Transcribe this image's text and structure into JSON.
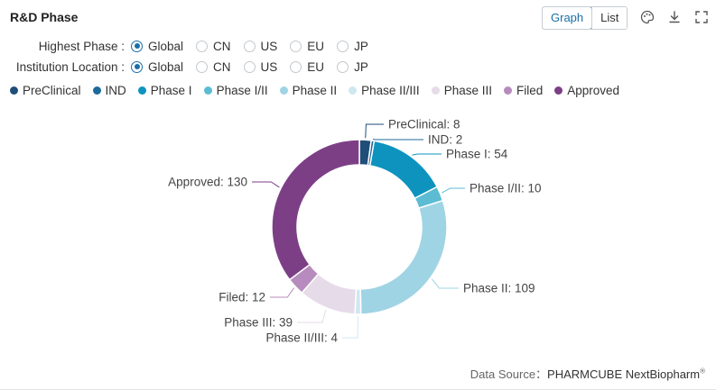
{
  "panel": {
    "title": "R&D Phase"
  },
  "view_toggle": {
    "graph_label": "Graph",
    "list_label": "List"
  },
  "toolbar": {
    "palette_icon": "palette-icon",
    "download_icon": "download-icon",
    "fullscreen_icon": "fullscreen-icon"
  },
  "filters": {
    "highest_phase": {
      "label": "Highest Phase :",
      "options": [
        "Global",
        "CN",
        "US",
        "EU",
        "JP"
      ],
      "selected": "Global"
    },
    "institution_location": {
      "label": "Institution Location :",
      "options": [
        "Global",
        "CN",
        "US",
        "EU",
        "JP"
      ],
      "selected": "Global"
    }
  },
  "colors": {
    "accent": "#1a6fa8",
    "PreClinical": "#1f4e79",
    "IND": "#1b6a9a",
    "Phase I": "#0e93bf",
    "Phase I/II": "#5bbcd3",
    "Phase II": "#9fd4e5",
    "Phase II/III": "#cfe7f0",
    "Phase III": "#e6dbe9",
    "Filed": "#b78bbd",
    "Approved": "#7c3f86"
  },
  "chart_data": {
    "type": "pie",
    "donut": true,
    "legend_position": "top-left",
    "categories": [
      "PreClinical",
      "IND",
      "Phase I",
      "Phase I/II",
      "Phase II",
      "Phase II/III",
      "Phase III",
      "Filed",
      "Approved"
    ],
    "values": [
      8,
      2,
      54,
      10,
      109,
      4,
      39,
      12,
      130
    ],
    "data_labels": [
      "PreClinical: 8",
      "IND: 2",
      "Phase I: 54",
      "Phase I/II: 10",
      "Phase II: 109",
      "Phase II/III: 4",
      "Phase III: 39",
      "Filed: 12",
      "Approved: 130"
    ]
  },
  "source": {
    "label": "Data Source：",
    "brand": "PHARMCUBE NextBiopharm",
    "mark": "®"
  }
}
